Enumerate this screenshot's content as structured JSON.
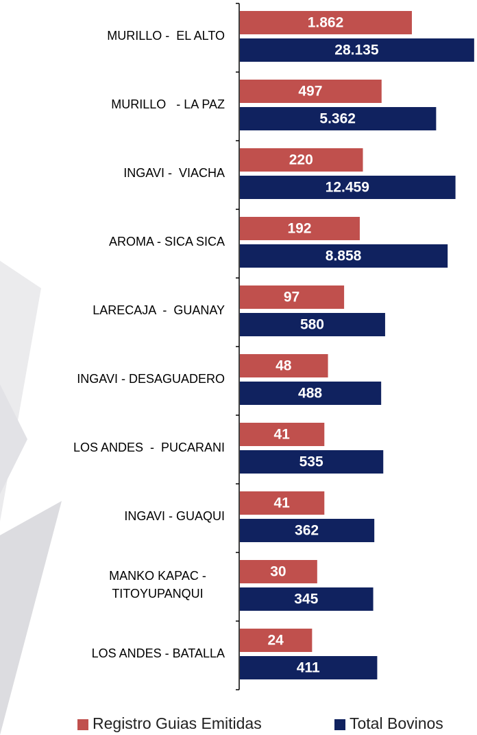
{
  "chart_data": {
    "type": "bar",
    "orientation": "horizontal",
    "categories": [
      "MURILLO -  EL ALTO",
      "MURILLO   - LA PAZ",
      "INGAVI -  VIACHA",
      "AROMA - SICA SICA",
      "LARECAJA  -  GUANAY",
      "INGAVI - DESAGUADERO",
      "LOS ANDES  -  PUCARANI",
      "INGAVI - GUAQUI",
      "MANKO KAPAC -\nTITOYUPANQUI",
      "LOS ANDES - BATALLA"
    ],
    "series": [
      {
        "name": "Registro Guias Emitidas",
        "color": "#c0504d",
        "values": [
          1862,
          497,
          220,
          192,
          97,
          48,
          41,
          41,
          30,
          24
        ],
        "value_labels": [
          "1.862",
          "497",
          "220",
          "192",
          "97",
          "48",
          "41",
          "41",
          "30",
          "24"
        ]
      },
      {
        "name": "Total Bovinos",
        "color": "#10225f",
        "values": [
          28135,
          5362,
          12459,
          8858,
          580,
          488,
          535,
          362,
          345,
          411
        ],
        "value_labels": [
          "28.135",
          "5.362",
          "12.459",
          "8.858",
          "580",
          "488",
          "535",
          "362",
          "345",
          "411"
        ]
      }
    ],
    "xlim": [
      1,
      30000
    ],
    "log_scale": true,
    "legend": "bottom"
  }
}
